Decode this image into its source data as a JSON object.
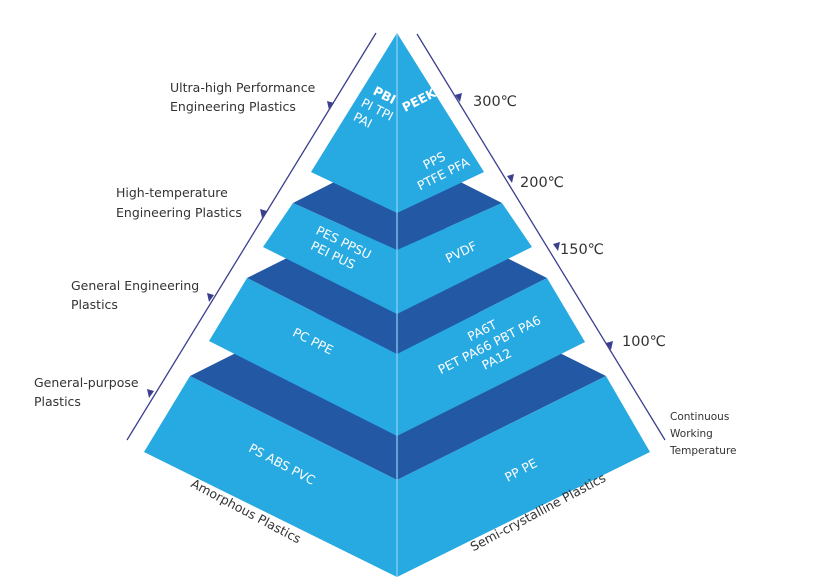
{
  "colors": {
    "face": "#27a9e1",
    "top_face": "#2358a5",
    "scale_line": "#3b3f8e",
    "divider": "#8fd3f2"
  },
  "left_scale": {
    "categories": [
      {
        "line1": "Ultra-high Performance",
        "line2": "Engineering Plastics"
      },
      {
        "line1": "High-temperature",
        "line2": "Engineering Plastics"
      },
      {
        "line1": "General Engineering",
        "line2": "Plastics"
      },
      {
        "line1": "General-purpose",
        "line2": "Plastics"
      }
    ]
  },
  "right_scale": {
    "temperatures": [
      "300℃",
      "200℃",
      "150℃",
      "100℃"
    ],
    "caption": {
      "line1": "Continuous",
      "line2": "Working",
      "line3": "Temperature"
    }
  },
  "axes": {
    "left": "Amorphous Plastics",
    "right": "Semi-crystalline Plastics"
  },
  "tiers": [
    {
      "amorphous": [
        "PBI",
        "PI TPI",
        "PAI"
      ],
      "semicrystalline": [
        "PEEK",
        "PPS",
        "PTFE PFA"
      ]
    },
    {
      "amorphous": [
        "PES PPSU",
        "PEI PUS"
      ],
      "semicrystalline": [
        "PVDF"
      ]
    },
    {
      "amorphous": [
        "PC PPE"
      ],
      "semicrystalline": [
        "PA6T",
        "PET PA66 PBT PA6",
        "PA12"
      ]
    },
    {
      "amorphous": [
        "PS ABS PVC"
      ],
      "semicrystalline": [
        "PP PE"
      ]
    }
  ]
}
